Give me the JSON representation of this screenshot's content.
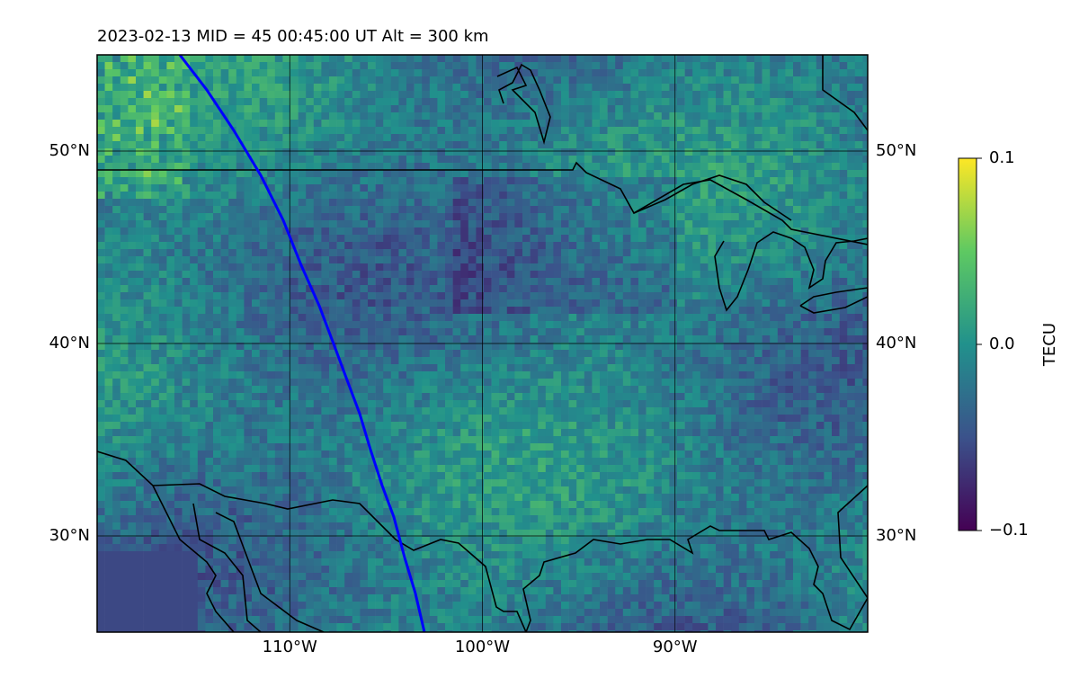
{
  "title": "2023-02-13  MID =  45    00:45:00  UT  Alt = 300 km",
  "map": {
    "lon_range": [
      -120,
      -80
    ],
    "lat_range": [
      25,
      55
    ],
    "lon_ticks": [
      {
        "value": -110,
        "label": "110°W"
      },
      {
        "value": -100,
        "label": "100°W"
      },
      {
        "value": -90,
        "label": "90°W"
      }
    ],
    "lat_ticks": [
      {
        "value": 30,
        "label": "30°N"
      },
      {
        "value": 40,
        "label": "40°N"
      },
      {
        "value": 50,
        "label": "50°N"
      }
    ]
  },
  "colorbar": {
    "label": "TECU",
    "range": [
      -0.1,
      0.1
    ],
    "ticks": [
      {
        "value": -0.1,
        "label": "−0.1"
      },
      {
        "value": 0,
        "label": "0.0"
      },
      {
        "value": 0.1,
        "label": "0.1"
      }
    ]
  }
}
